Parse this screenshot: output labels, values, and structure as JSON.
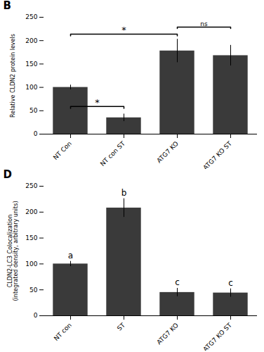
{
  "chart_data": [
    {
      "type": "bar",
      "title": "B",
      "categories": [
        "NT Con",
        "NT con ST",
        "ATG7 KO",
        "ATG7 KO ST"
      ],
      "values": [
        100,
        35,
        178,
        168
      ],
      "errors": [
        5,
        8,
        25,
        22
      ],
      "color": "#3a3a3a",
      "ylabel": "Relative CLDN2 protein levels",
      "ylim": [
        0,
        250
      ],
      "yticks": [
        0,
        50,
        100,
        150,
        200,
        250
      ],
      "annotations": [
        {
          "text": "*",
          "from": "NT Con",
          "to": "NT con ST",
          "y": 55,
          "y_top": 59
        },
        {
          "text": "*",
          "from": "NT Con",
          "to": "ATG7 KO",
          "y": 210,
          "y_top": 214
        },
        {
          "text": "ns",
          "from": "ATG7 KO",
          "to": "ATG7 KO ST",
          "y": 226,
          "y_top": 229
        }
      ]
    },
    {
      "type": "bar",
      "title": "D",
      "categories": [
        "NT con",
        "ST",
        "ATG7 KO",
        "ATG7 KO ST"
      ],
      "values": [
        100,
        208,
        45,
        44
      ],
      "errors": [
        5,
        18,
        8,
        8
      ],
      "color": "#3a3a3a",
      "ylabel": "CLDN2-LC3 Colocalization\n(integrated density, arbitrary units)",
      "ylim": [
        0,
        250
      ],
      "yticks": [
        0,
        50,
        100,
        150,
        200,
        250
      ],
      "annotations": [
        {
          "text": "a",
          "x": "NT con"
        },
        {
          "text": "b",
          "x": "ST"
        },
        {
          "text": "c",
          "x": "ATG7 KO"
        },
        {
          "text": "c",
          "x": "ATG7 KO ST"
        }
      ]
    }
  ]
}
